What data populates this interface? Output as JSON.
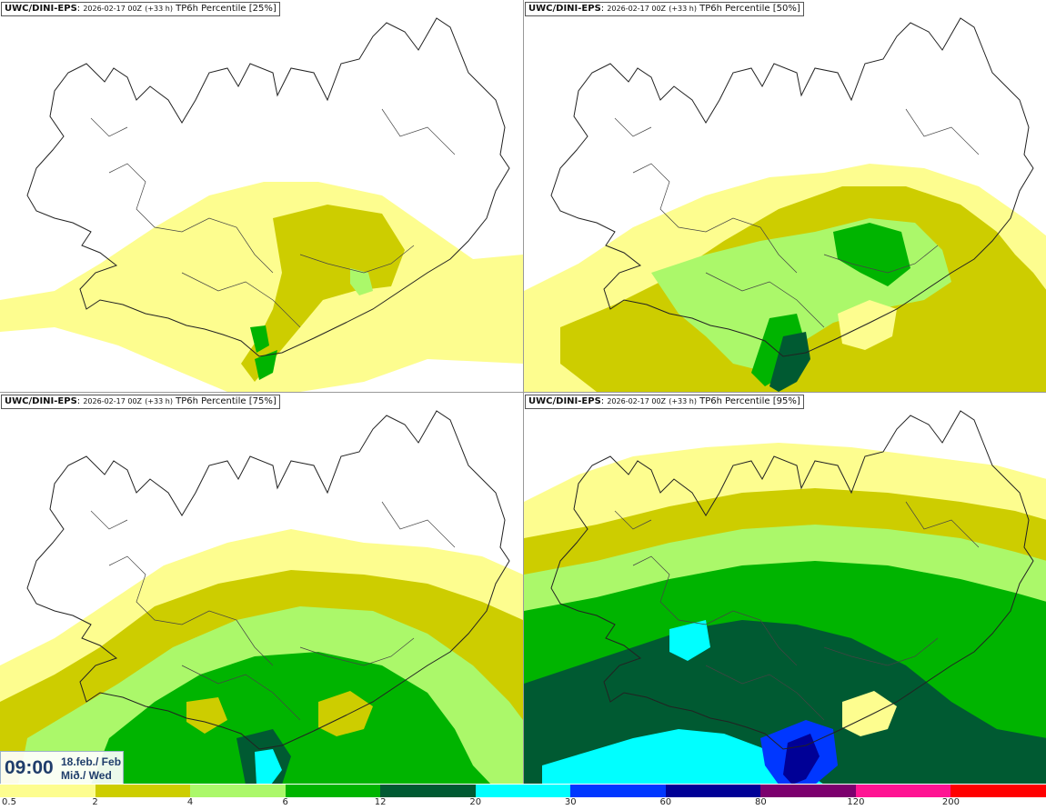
{
  "panels": [
    {
      "model": "UWC/DINI-EPS",
      "run": "2026-02-17 00Z",
      "lead": "(+33 h)",
      "field": "TP6h Percentile",
      "percentile": "[25%]",
      "intensity": 1
    },
    {
      "model": "UWC/DINI-EPS",
      "run": "2026-02-17 00Z",
      "lead": "(+33 h)",
      "field": "TP6h Percentile",
      "percentile": "[50%]",
      "intensity": 2
    },
    {
      "model": "UWC/DINI-EPS",
      "run": "2026-02-17 00Z",
      "lead": "(+33 h)",
      "field": "TP6h Percentile",
      "percentile": "[75%]",
      "intensity": 3
    },
    {
      "model": "UWC/DINI-EPS",
      "run": "2026-02-17 00Z",
      "lead": "(+33 h)",
      "field": "TP6h Percentile",
      "percentile": "[95%]",
      "intensity": 4
    }
  ],
  "valid_time": {
    "time": "09:00",
    "date_line1": "18.feb./ Feb",
    "date_line2": "Mið./ Wed"
  },
  "legend": {
    "labels": [
      "0.5",
      "2",
      "4",
      "6",
      "12",
      "20",
      "30",
      "60",
      "80",
      "120",
      "200"
    ],
    "colors": [
      "#fdfd8f",
      "#cdcd00",
      "#abf86a",
      "#00b400",
      "#005a32",
      "#00ffff",
      "#0037ff",
      "#000096",
      "#7c006e",
      "#ff1493",
      "#ff0000"
    ]
  }
}
